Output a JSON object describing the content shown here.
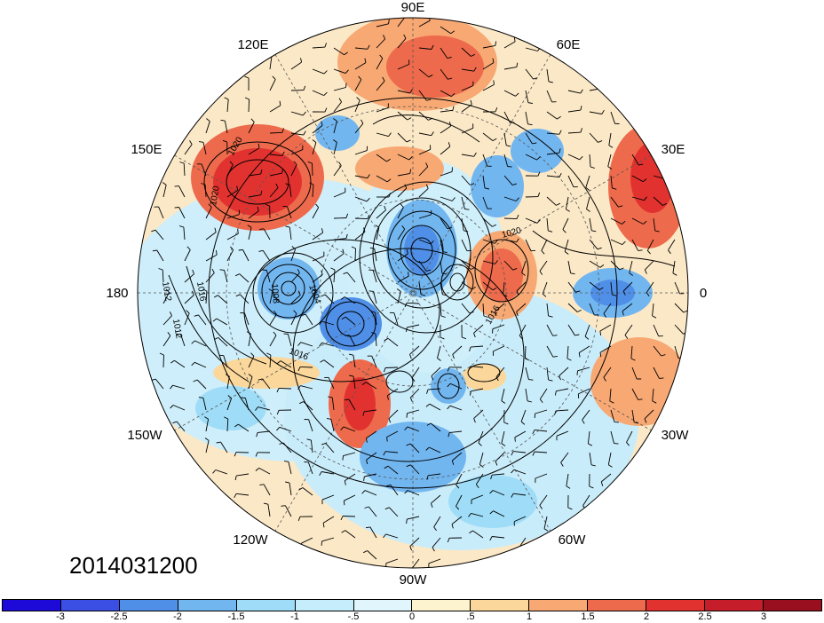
{
  "map": {
    "lon_labels": [
      "90E",
      "60E",
      "30E",
      "0",
      "30W",
      "60W",
      "90W",
      "120W",
      "150W",
      "180",
      "150E",
      "120E"
    ],
    "contour_labels": [
      "1020",
      "1020",
      "1012",
      "1016",
      "1012",
      "1008",
      "1004",
      "1016",
      "1020",
      "1016"
    ]
  },
  "date": "2014031200",
  "colorbar": {
    "colors": [
      "#1e0ad8",
      "#3b4fe5",
      "#4f8fe8",
      "#72b6f0",
      "#9edcf7",
      "#c5edfb",
      "#e0f6fc",
      "#fdf3cf",
      "#fbd79b",
      "#f7a873",
      "#ee6a4c",
      "#e2322f",
      "#c51d2a",
      "#990f1f"
    ],
    "tick_labels": [
      "-3",
      "-2.5",
      "-2",
      "-1.5",
      "-1",
      "-.5",
      "0",
      ".5",
      "1",
      "1.5",
      "2",
      "2.5",
      "3"
    ]
  }
}
